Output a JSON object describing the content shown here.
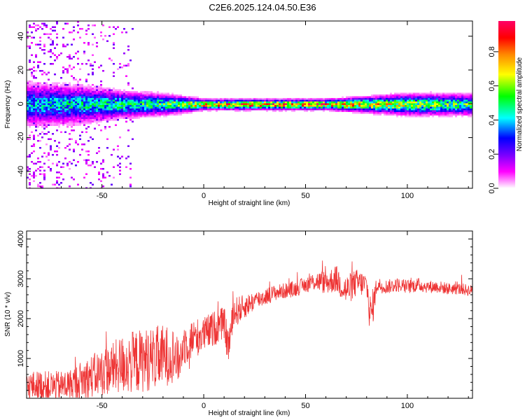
{
  "title": "C2E6.2025.124.04.50.E36",
  "chart_data": [
    {
      "type": "heatmap",
      "title": "C2E6.2025.124.04.50.E36",
      "xlabel": "Height of straight line (km)",
      "ylabel": "Frequency (Hz)",
      "xlim": [
        -87,
        132
      ],
      "ylim": [
        -50,
        49
      ],
      "xticks": [
        -50,
        0,
        50,
        100
      ],
      "yticks": [
        -40,
        -20,
        0,
        20,
        40
      ],
      "colorbar": {
        "label": "Normalized spectral amplitude",
        "range": [
          0.0,
          0.98
        ],
        "ticks": [
          "0.0",
          "0.2",
          "0.4",
          "0.6",
          "0.8"
        ],
        "colormap": [
          "#ffffff",
          "#ff00ff",
          "#7700ff",
          "#0000ff",
          "#00ffff",
          "#00ff00",
          "#ffff00",
          "#ff8800",
          "#ff0000",
          "#ff0066"
        ]
      },
      "description_series": [
        {
          "x": [
            -87,
            -60,
            -40,
            -20,
            -10,
            0,
            20,
            40,
            60,
            80,
            100,
            132
          ],
          "center_freq": [
            0,
            0,
            0,
            0,
            0,
            0,
            0,
            0,
            0,
            0,
            0,
            0
          ],
          "peak_amplitude": [
            0.45,
            0.5,
            0.55,
            0.6,
            0.7,
            0.85,
            0.95,
            0.95,
            0.9,
            0.8,
            0.7,
            0.6
          ],
          "band_halfwidth": [
            8,
            7,
            5,
            4,
            3,
            2,
            2,
            2,
            2,
            3,
            4,
            4
          ]
        }
      ]
    },
    {
      "type": "line",
      "xlabel": "Height of straight line (km)",
      "ylabel": "SNR (10 * v/v)",
      "xlim": [
        -87,
        132
      ],
      "ylim": [
        0,
        4200
      ],
      "xticks": [
        -50,
        0,
        50,
        100
      ],
      "yticks": [
        1000,
        2000,
        3000,
        4000
      ],
      "color": "#ee3333",
      "series": [
        {
          "x": [
            -87,
            -80,
            -75,
            -70,
            -65,
            -60,
            -55,
            -50,
            -45,
            -40,
            -35,
            -30,
            -25,
            -20,
            -15,
            -12,
            -10,
            -5,
            0,
            5,
            10,
            12,
            15,
            20,
            25,
            30,
            35,
            40,
            45,
            50,
            55,
            60,
            65,
            70,
            75,
            80,
            82,
            85,
            90,
            95,
            100,
            105,
            110,
            115,
            120,
            125,
            132
          ],
          "y": [
            300,
            320,
            300,
            310,
            350,
            450,
            550,
            650,
            750,
            850,
            900,
            950,
            1000,
            1050,
            1100,
            900,
            1350,
            1500,
            1600,
            1750,
            1900,
            1300,
            2150,
            2300,
            2450,
            2550,
            2650,
            2700,
            2750,
            2850,
            2950,
            2900,
            3000,
            2700,
            2900,
            2850,
            2000,
            2850,
            2800,
            2850,
            2800,
            2850,
            2800,
            2800,
            2750,
            2750,
            2700
          ],
          "noise": [
            380,
            380,
            380,
            380,
            400,
            500,
            550,
            600,
            650,
            750,
            800,
            800,
            800,
            800,
            700,
            500,
            550,
            500,
            450,
            450,
            400,
            500,
            400,
            300,
            250,
            220,
            200,
            200,
            200,
            200,
            250,
            300,
            350,
            400,
            350,
            300,
            600,
            200,
            180,
            180,
            180,
            180,
            160,
            160,
            150,
            150,
            150
          ]
        }
      ]
    }
  ]
}
